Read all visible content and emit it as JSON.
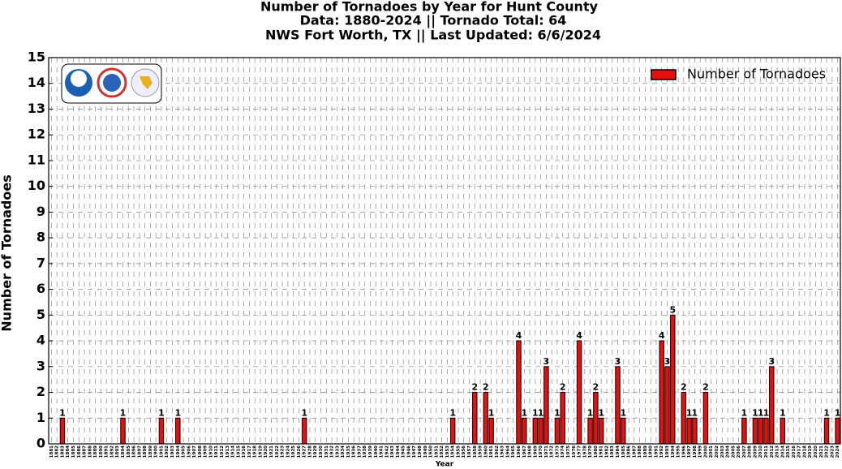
{
  "chart_data": {
    "type": "bar",
    "title": "Number of Tornadoes by Year for Hunt County",
    "subtitle": [
      "Data: 1880-2024 || Tornado Total: 64",
      "NWS Fort Worth, TX || Last Updated: 6/6/2024"
    ],
    "x_label": "Year",
    "y_label": "Number of Tornadoes",
    "categories": [
      "1881",
      "1882",
      "1883",
      "1884",
      "1885",
      "1886",
      "1887",
      "1888",
      "1889",
      "1890",
      "1891",
      "1892",
      "1893",
      "1894",
      "1895",
      "1896",
      "1897",
      "1898",
      "1899",
      "1900",
      "1901",
      "1902",
      "1903",
      "1904",
      "1905",
      "1906",
      "1907",
      "1908",
      "1909",
      "1910",
      "1911",
      "1912",
      "1913",
      "1914",
      "1915",
      "1916",
      "1917",
      "1918",
      "1919",
      "1920",
      "1921",
      "1922",
      "1923",
      "1924",
      "1925",
      "1926",
      "1927",
      "1928",
      "1929",
      "1930",
      "1931",
      "1932",
      "1933",
      "1934",
      "1935",
      "1936",
      "1937",
      "1938",
      "1939",
      "1940",
      "1941",
      "1942",
      "1943",
      "1944",
      "1945",
      "1946",
      "1947",
      "1948",
      "1949",
      "1950",
      "1951",
      "1952",
      "1953",
      "1954",
      "1955",
      "1956",
      "1957",
      "1958",
      "1959",
      "1960",
      "1961",
      "1962",
      "1963",
      "1964",
      "1965",
      "1966",
      "1967",
      "1968",
      "1969",
      "1970",
      "1971",
      "1972",
      "1973",
      "1974",
      "1975",
      "1976",
      "1977",
      "1978",
      "1979",
      "1980",
      "1981",
      "1982",
      "1983",
      "1984",
      "1985",
      "1986",
      "1987",
      "1988",
      "1989",
      "1990",
      "1991",
      "1992",
      "1993",
      "1994",
      "1995",
      "1996",
      "1997",
      "1998",
      "1999",
      "2000",
      "2001",
      "2002",
      "2003",
      "2004",
      "2005",
      "2006",
      "2007",
      "2008",
      "2009",
      "2010",
      "2011",
      "2012",
      "2013",
      "2014",
      "2015",
      "2016",
      "2017",
      "2018",
      "2019",
      "2020",
      "2021",
      "2022",
      "2023",
      "2024"
    ],
    "series": [
      {
        "name": "Number of Tornadoes",
        "color": "#e8100f",
        "values": [
          0,
          0,
          1,
          0,
          0,
          0,
          0,
          0,
          0,
          0,
          0,
          0,
          0,
          1,
          0,
          0,
          0,
          0,
          0,
          0,
          1,
          0,
          0,
          1,
          0,
          0,
          0,
          0,
          0,
          0,
          0,
          0,
          0,
          0,
          0,
          0,
          0,
          0,
          0,
          0,
          0,
          0,
          0,
          0,
          0,
          0,
          1,
          0,
          0,
          0,
          0,
          0,
          0,
          0,
          0,
          0,
          0,
          0,
          0,
          0,
          0,
          0,
          0,
          0,
          0,
          0,
          0,
          0,
          0,
          0,
          0,
          0,
          0,
          1,
          0,
          0,
          0,
          2,
          0,
          2,
          1,
          0,
          0,
          0,
          0,
          4,
          1,
          0,
          1,
          1,
          3,
          0,
          1,
          2,
          0,
          0,
          4,
          0,
          1,
          2,
          1,
          0,
          0,
          3,
          1,
          0,
          0,
          0,
          0,
          0,
          0,
          4,
          3,
          5,
          0,
          2,
          1,
          1,
          0,
          2,
          0,
          0,
          0,
          0,
          0,
          0,
          1,
          0,
          1,
          1,
          1,
          3,
          0,
          1,
          0,
          0,
          0,
          0,
          0,
          0,
          0,
          1,
          0,
          1
        ]
      }
    ],
    "ylim": [
      0,
      15
    ],
    "yticks": [
      0,
      1,
      2,
      3,
      4,
      5,
      6,
      7,
      8,
      9,
      10,
      11,
      12,
      13,
      14,
      15
    ],
    "grid": true,
    "legend": "upper right"
  }
}
